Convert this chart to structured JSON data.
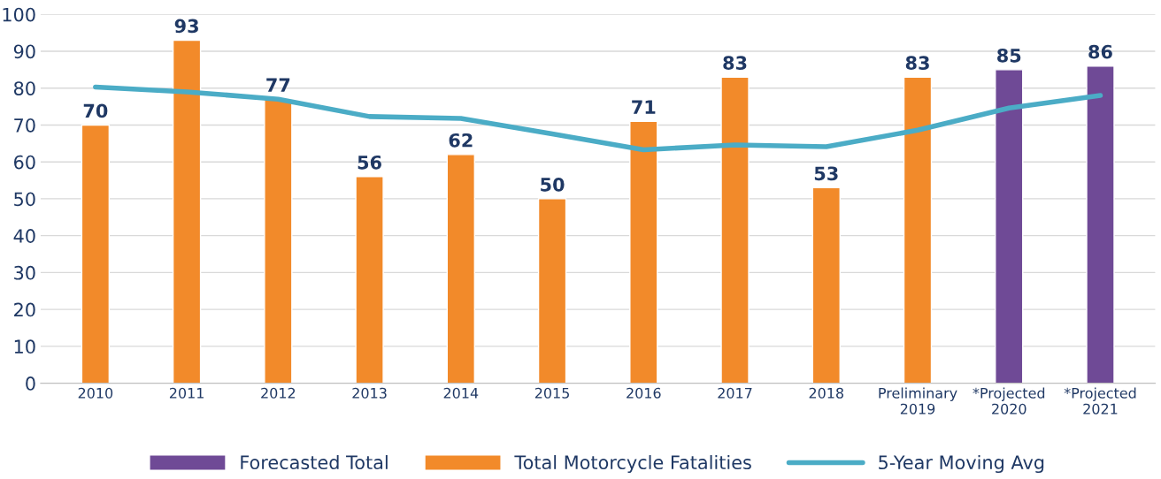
{
  "chart_data": {
    "type": "bar",
    "categories": [
      "2010",
      "2011",
      "2012",
      "2013",
      "2014",
      "2015",
      "2016",
      "2017",
      "2018",
      "Preliminary\n2019",
      "*Projected\n2020",
      "*Projected\n2021"
    ],
    "series": [
      {
        "name": "Forecasted Total",
        "color": "#6f4a96",
        "values": [
          null,
          null,
          null,
          null,
          null,
          null,
          null,
          null,
          null,
          null,
          85,
          86
        ]
      },
      {
        "name": "Total Motorcycle Fatalities",
        "color": "#f28a2a",
        "values": [
          70,
          93,
          77,
          56,
          62,
          50,
          71,
          83,
          53,
          83,
          null,
          null
        ]
      },
      {
        "name": "5-Year Moving Avg",
        "type": "line",
        "color": "#4bacc6",
        "data_labels": false,
        "values": [
          80.3,
          79,
          77,
          72.3,
          71.8,
          67.6,
          63.3,
          64.6,
          64.1,
          68.6,
          74.6,
          78
        ]
      }
    ],
    "data_labels": true,
    "ylim": [
      0,
      100
    ],
    "yticks": [
      0,
      10,
      20,
      30,
      40,
      50,
      60,
      70,
      80,
      90,
      100
    ],
    "grid": "y",
    "legend": "bottom",
    "marker": "none",
    "line_style": "solid"
  }
}
